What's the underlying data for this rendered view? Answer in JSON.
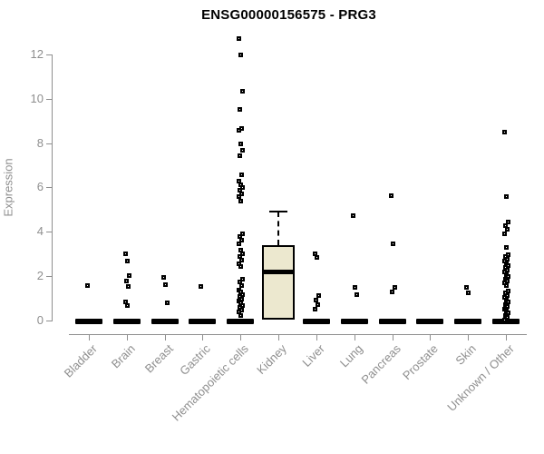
{
  "chart_data": {
    "type": "boxplot",
    "title": "ENSG00000156575 - PRG3",
    "ylabel": "Expression",
    "xlabel": "",
    "yticks": [
      0,
      2,
      4,
      6,
      8,
      10,
      12
    ],
    "ylim": [
      0,
      12.9
    ],
    "grid": false,
    "legend": "none",
    "marker": "open-square",
    "categories": [
      "Bladder",
      "Brain",
      "Breast",
      "Gastric",
      "Hematopoietic cells",
      "Kidney",
      "Liver",
      "Lung",
      "Pancreas",
      "Prostate",
      "Skin",
      "Unknown / Other"
    ],
    "series": [
      {
        "category": "Bladder",
        "zero_bar": true,
        "points": [
          1.6
        ]
      },
      {
        "category": "Brain",
        "zero_bar": true,
        "points": [
          3.05,
          2.7,
          2.05,
          1.8,
          1.55,
          0.85,
          0.7
        ]
      },
      {
        "category": "Breast",
        "zero_bar": true,
        "points": [
          1.95,
          1.65,
          0.8
        ]
      },
      {
        "category": "Gastric",
        "zero_bar": true,
        "points": [
          1.55
        ]
      },
      {
        "category": "Hematopoietic cells",
        "zero_bar": true,
        "points": [
          12.75,
          12.0,
          10.35,
          9.55,
          8.7,
          8.6,
          8.0,
          7.7,
          7.45,
          6.6,
          6.3,
          6.15,
          6.0,
          5.9,
          5.75,
          5.6,
          5.4,
          3.95,
          3.8,
          3.65,
          3.5,
          3.2,
          3.05,
          2.9,
          2.75,
          2.6,
          2.45,
          1.9,
          1.75,
          1.6,
          1.4,
          1.3,
          1.2,
          1.1,
          1.0,
          0.9,
          0.8,
          0.7,
          0.6,
          0.5,
          0.4,
          0.25
        ]
      },
      {
        "category": "Kidney",
        "zero_bar": false,
        "points": [],
        "box": {
          "q1": 0.05,
          "median": 2.2,
          "q3": 3.4,
          "whisker_high": 4.9
        }
      },
      {
        "category": "Liver",
        "zero_bar": true,
        "points": [
          3.05,
          2.85,
          1.15,
          0.95,
          0.75,
          0.55
        ]
      },
      {
        "category": "Lung",
        "zero_bar": true,
        "points": [
          4.75,
          1.5,
          1.2
        ]
      },
      {
        "category": "Pancreas",
        "zero_bar": true,
        "points": [
          5.65,
          3.5,
          1.5,
          1.3
        ]
      },
      {
        "category": "Prostate",
        "zero_bar": true,
        "points": []
      },
      {
        "category": "Skin",
        "zero_bar": true,
        "points": [
          1.5,
          1.25
        ]
      },
      {
        "category": "Unknown / Other",
        "zero_bar": true,
        "points": [
          8.5,
          5.6,
          4.45,
          4.3,
          4.15,
          3.95,
          3.3,
          3.0,
          2.9,
          2.8,
          2.7,
          2.6,
          2.5,
          2.4,
          2.3,
          2.2,
          2.1,
          2.0,
          1.9,
          1.8,
          1.7,
          1.6,
          1.35,
          1.25,
          1.15,
          1.05,
          0.95,
          0.85,
          0.75,
          0.65,
          0.55,
          0.45,
          0.35,
          0.25,
          0.15,
          0.05
        ]
      }
    ],
    "colors": {
      "title": "#000000",
      "axis": "#8f8f8f",
      "labels": "#8f8f8f",
      "point": "#000000",
      "box_fill": "#ece8cf",
      "box_border": "#000000",
      "median": "#000000"
    }
  }
}
